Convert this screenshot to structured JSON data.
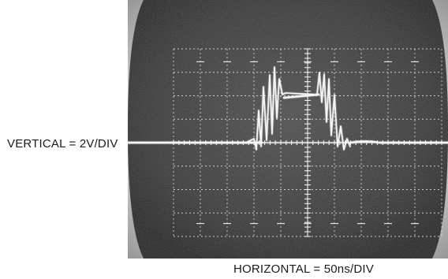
{
  "captions": {
    "vertical": "VERTICAL = 2V/DIV",
    "horizontal": "HORIZONTAL = 50ns/DIV"
  },
  "scope": {
    "graticule_divisions": {
      "horizontal": 10,
      "vertical": 8
    },
    "colors": {
      "screen": "#3a3a3a",
      "bezel": "#bdbdbd",
      "graticule": "#e8e8e8",
      "trace": "#f4f4f4"
    }
  }
}
